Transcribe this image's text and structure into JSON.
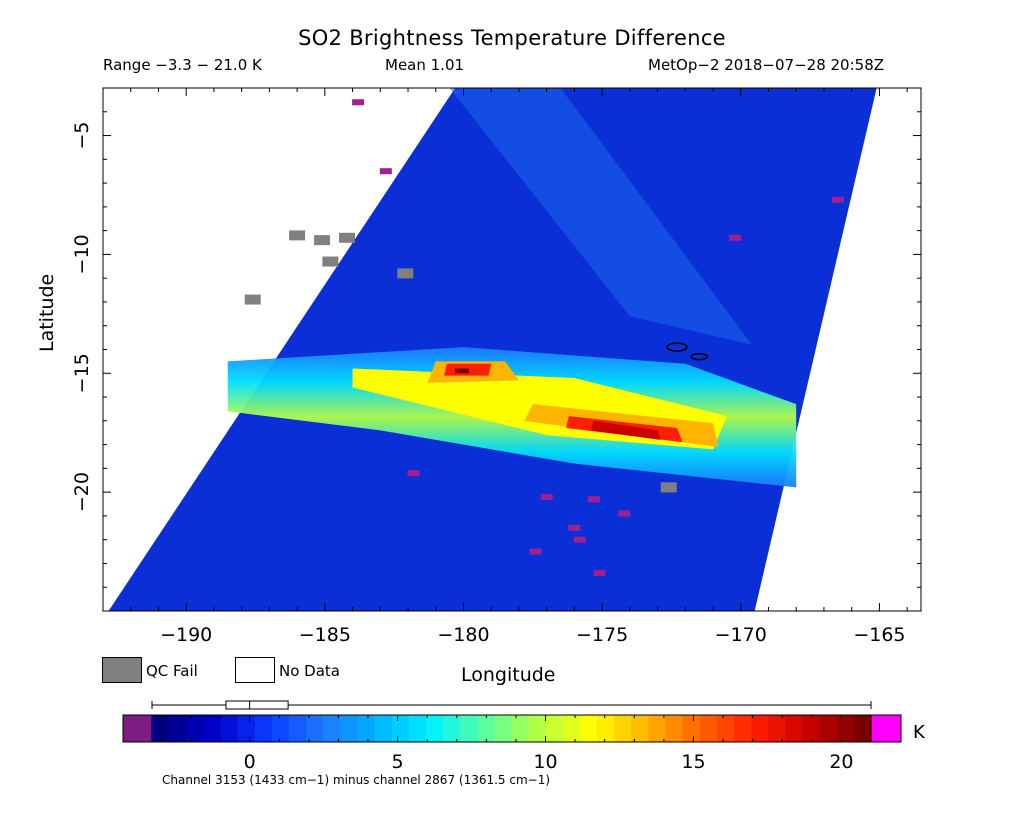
{
  "chart_data": {
    "type": "heatmap",
    "title": "SO2 Brightness Temperature Difference",
    "subtitle_left": "Range −3.3 − 21.0 K",
    "subtitle_center": "Mean 1.01",
    "subtitle_right": "MetOp−2 2018−07−28 20:58Z",
    "xlabel": "Longitude",
    "ylabel": "Latitude",
    "xlim": [
      -193,
      -163.5
    ],
    "ylim": [
      -25,
      -3
    ],
    "x_ticks": [
      -190,
      -185,
      -180,
      -175,
      -170,
      -165
    ],
    "x_tick_labels": [
      "−190",
      "−185",
      "−180",
      "−175",
      "−170",
      "−165"
    ],
    "y_ticks": [
      -5,
      -10,
      -15,
      -20
    ],
    "y_tick_labels": [
      "−5",
      "−10",
      "−15",
      "−20"
    ],
    "swath": {
      "left_top": -180.3,
      "left_bottom": -192.8,
      "right_top": -165.1,
      "right_bottom": -169.5
    },
    "so2_band": {
      "lon_start": -188.5,
      "lon_end": -168.0,
      "lat_start": -14.7,
      "lat_end": -18.4,
      "peak_value": 21.0
    },
    "qc_fail_cells": [
      [
        -186,
        -9.2
      ],
      [
        -185.1,
        -9.4
      ],
      [
        -184.2,
        -9.3
      ],
      [
        -182.1,
        -10.8
      ],
      [
        -187.6,
        -11.9
      ],
      [
        -184.8,
        -10.3
      ],
      [
        -172.6,
        -19.8
      ]
    ],
    "colorbar": {
      "label": "K",
      "min": -3.3,
      "max": 21.0,
      "ticks": [
        0,
        5,
        10,
        15,
        20
      ],
      "tick_labels": [
        "0",
        "5",
        "10",
        "15",
        "20"
      ],
      "underflow_color": "#7d1c82",
      "overflow_color": "#ff00ff",
      "colors": [
        "#000080",
        "#0000cd",
        "#0a3cff",
        "#1e78ff",
        "#00b4ff",
        "#00f0ff",
        "#5affa0",
        "#b4ff46",
        "#ffff00",
        "#ffb400",
        "#ff6400",
        "#ff1e00",
        "#c80000",
        "#7a0000"
      ],
      "box": {
        "whisker_low": -3.3,
        "q1": -0.8,
        "median": 0.0,
        "q3": 1.3,
        "whisker_high": 21.0
      }
    },
    "legend": [
      {
        "label": "QC Fail",
        "color": "#808080"
      },
      {
        "label": "No Data",
        "color": "#ffffff"
      }
    ],
    "footnote": "Channel 3153 (1433 cm−1) minus channel 2867 (1361.5 cm−1)"
  }
}
